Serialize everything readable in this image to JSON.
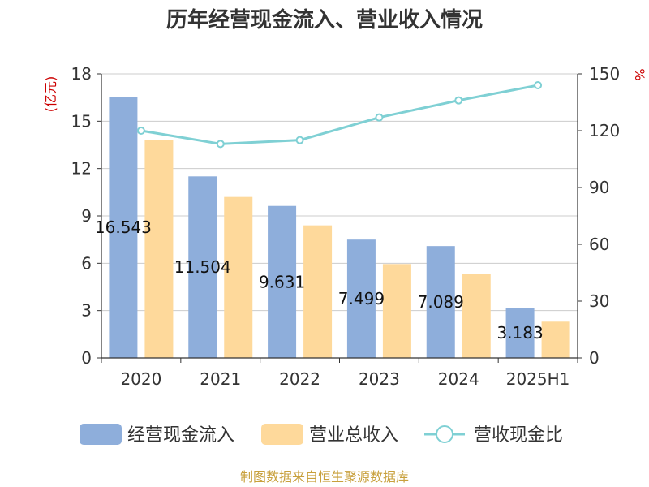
{
  "chart_data": {
    "type": "bar",
    "title": "历年经营现金流入、营业收入情况",
    "categories": [
      "2020",
      "2021",
      "2022",
      "2023",
      "2024",
      "2025H1"
    ],
    "left_axis": {
      "unit": "(亿元)",
      "ylim": [
        0,
        18
      ],
      "ticks": [
        0,
        3,
        6,
        9,
        12,
        15,
        18
      ]
    },
    "right_axis": {
      "unit": "%",
      "ylim": [
        0,
        150
      ],
      "ticks": [
        0,
        30,
        60,
        90,
        120,
        150
      ]
    },
    "series": [
      {
        "name": "经营现金流入",
        "type": "bar",
        "axis": "left",
        "color": "#8eaedb",
        "values": [
          16.543,
          11.504,
          9.631,
          7.499,
          7.089,
          3.183
        ],
        "labels": [
          "16.543",
          "11.504",
          "9.631",
          "7.499",
          "7.089",
          "3.183"
        ]
      },
      {
        "name": "营业总收入",
        "type": "bar",
        "axis": "left",
        "color": "#fed99b",
        "values": [
          13.8,
          10.2,
          8.4,
          5.95,
          5.3,
          2.3
        ]
      },
      {
        "name": "营收现金比",
        "type": "line",
        "axis": "right",
        "color": "#7fd0d4",
        "values": [
          120,
          113,
          115,
          127,
          136,
          144
        ]
      }
    ],
    "grid": true,
    "legend": "bottom"
  },
  "source": "制图数据来自恒生聚源数据库"
}
